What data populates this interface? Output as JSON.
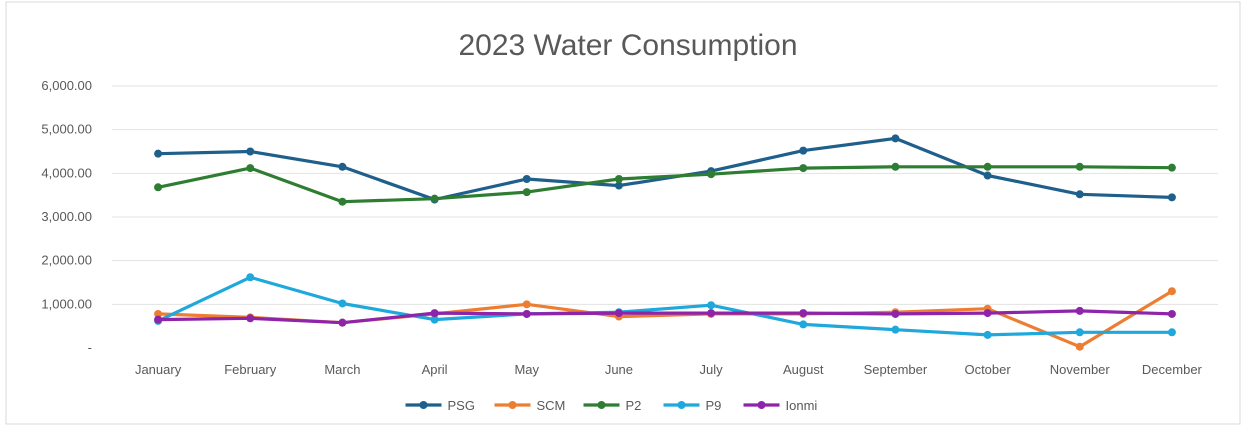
{
  "chart_data": {
    "type": "line",
    "title": "2023 Water Consumption",
    "xlabel": "",
    "ylabel": "",
    "categories": [
      "January",
      "February",
      "March",
      "April",
      "May",
      "June",
      "July",
      "August",
      "September",
      "October",
      "November",
      "December"
    ],
    "y_ticks": [
      {
        "value": 0,
        "label": "-"
      },
      {
        "value": 1000,
        "label": "1,000.00"
      },
      {
        "value": 2000,
        "label": "2,000.00"
      },
      {
        "value": 3000,
        "label": "3,000.00"
      },
      {
        "value": 4000,
        "label": "4,000.00"
      },
      {
        "value": 5000,
        "label": "5,000.00"
      },
      {
        "value": 6000,
        "label": "6,000.00"
      }
    ],
    "ylim": [
      0,
      6000
    ],
    "grid": true,
    "legend_position": "bottom",
    "series": [
      {
        "name": "PSG",
        "color": "#1f5f8b",
        "values": [
          4450,
          4500,
          4150,
          3400,
          3870,
          3720,
          4050,
          4520,
          4800,
          3950,
          3520,
          3450
        ]
      },
      {
        "name": "SCM",
        "color": "#ed7d31",
        "values": [
          780,
          700,
          580,
          780,
          1000,
          720,
          780,
          780,
          820,
          900,
          30,
          1300
        ]
      },
      {
        "name": "P2",
        "color": "#2e7d32",
        "values": [
          3680,
          4120,
          3350,
          3420,
          3570,
          3870,
          3980,
          4120,
          4150,
          4150,
          4150,
          4130
        ]
      },
      {
        "name": "P9",
        "color": "#1fa8dc",
        "values": [
          620,
          1620,
          1020,
          650,
          780,
          820,
          980,
          540,
          420,
          300,
          360,
          360
        ]
      },
      {
        "name": "Ionmi",
        "color": "#8e24aa",
        "values": [
          650,
          680,
          580,
          800,
          780,
          800,
          800,
          800,
          780,
          800,
          850,
          780
        ]
      }
    ]
  }
}
